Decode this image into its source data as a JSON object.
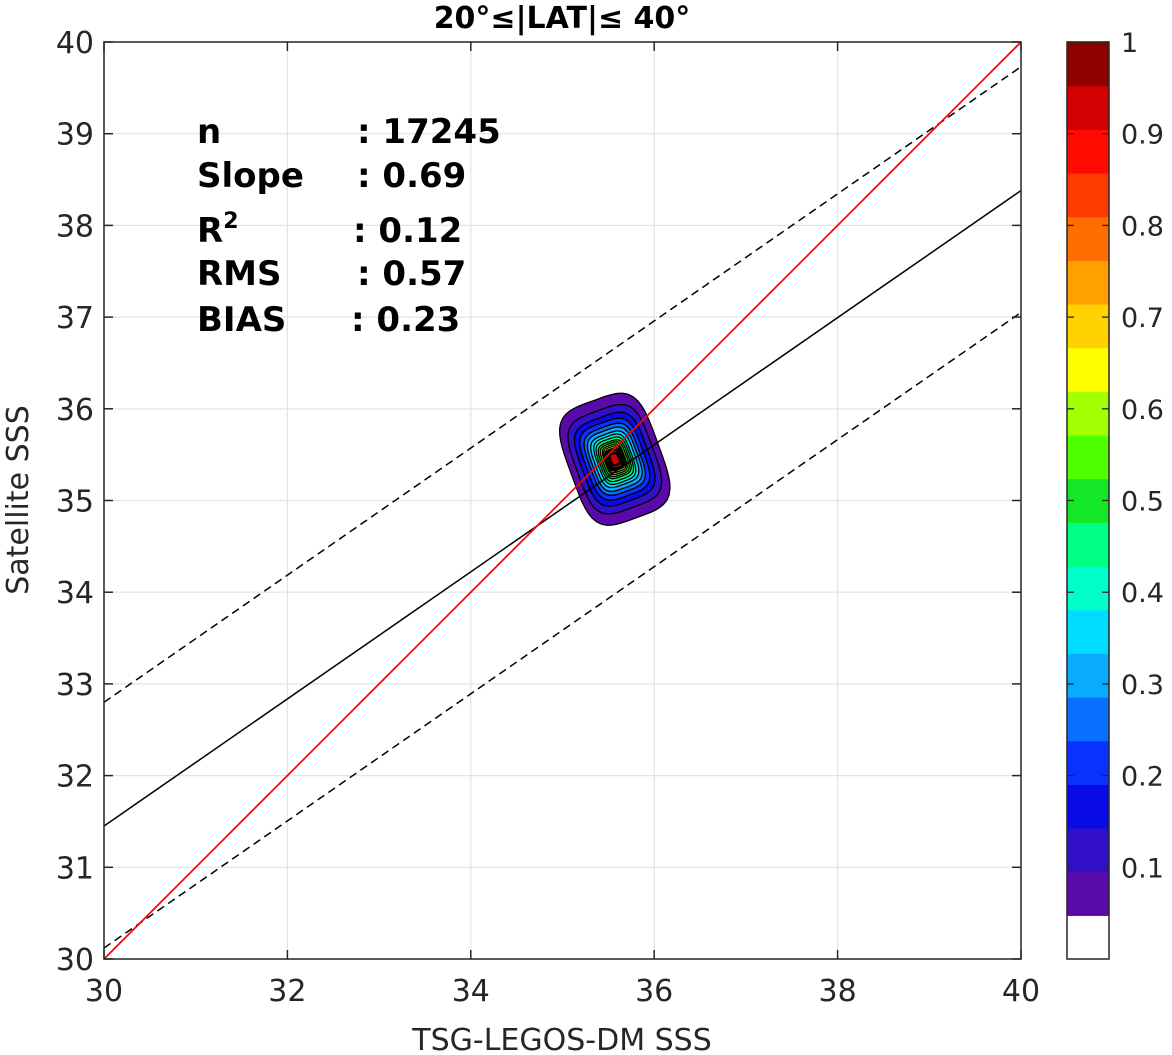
{
  "chart_data": {
    "type": "scatter",
    "title": "20°≤|LAT|≤ 40°",
    "xlabel": "TSG-LEGOS-DM SSS",
    "ylabel": "Satellite SSS",
    "xlim": [
      30,
      40
    ],
    "ylim": [
      30,
      40
    ],
    "xticks": [
      "30",
      "32",
      "34",
      "36",
      "38",
      "40"
    ],
    "yticks": [
      "30",
      "31",
      "32",
      "33",
      "34",
      "35",
      "36",
      "37",
      "38",
      "39",
      "40"
    ],
    "grid": true,
    "stats": [
      {
        "label": "n",
        "value": ": 17245"
      },
      {
        "label": "Slope",
        "value": ": 0.69"
      },
      {
        "label": "R",
        "sup": "2",
        "value": ": 0.12"
      },
      {
        "label": "RMS",
        "value": ": 0.57"
      },
      {
        "label": "BIAS",
        "value": ": 0.23"
      }
    ],
    "lines": {
      "identity": {
        "color": "#ff0000",
        "slope": 1,
        "intercept": 0
      },
      "regression": {
        "color": "#000000",
        "style": "solid",
        "points": [
          [
            30,
            31.45
          ],
          [
            40,
            38.38
          ]
        ]
      },
      "upper_bound": {
        "color": "#000000",
        "style": "dashed",
        "points": [
          [
            30,
            32.8
          ],
          [
            40,
            39.73
          ]
        ]
      },
      "lower_bound": {
        "color": "#000000",
        "style": "dashed",
        "points": [
          [
            30,
            30.12
          ],
          [
            40,
            37.05
          ]
        ]
      }
    },
    "density": {
      "center": [
        35.57,
        35.45
      ],
      "levels": [
        0.05,
        0.1,
        0.15,
        0.2,
        0.25,
        0.3,
        0.35,
        0.4,
        0.45,
        0.5,
        0.55,
        0.6,
        0.65,
        0.7,
        0.75,
        0.8,
        0.85,
        0.9,
        0.95
      ],
      "half_width_x": [
        0.5,
        0.43,
        0.37,
        0.32,
        0.28,
        0.25,
        0.22,
        0.19,
        0.17,
        0.15,
        0.13,
        0.11,
        0.1,
        0.09,
        0.08,
        0.07,
        0.06,
        0.05,
        0.04
      ],
      "half_height_y": [
        0.68,
        0.56,
        0.48,
        0.42,
        0.37,
        0.33,
        0.29,
        0.26,
        0.23,
        0.2,
        0.18,
        0.16,
        0.14,
        0.12,
        0.11,
        0.1,
        0.09,
        0.07,
        0.06
      ]
    },
    "colorbar": {
      "range": [
        0,
        1
      ],
      "tick_values": [
        0.1,
        0.2,
        0.3,
        0.4,
        0.5,
        0.6,
        0.7,
        0.8,
        0.9,
        1.0
      ],
      "tick_labels": [
        "0.1",
        "0.2",
        "0.3",
        "0.4",
        "0.5",
        "0.6",
        "0.7",
        "0.8",
        "0.9",
        "1"
      ],
      "colors": [
        "#ffffff",
        "#5a0aa8",
        "#3210c8",
        "#0a0ae6",
        "#0a32ff",
        "#0a6eff",
        "#0aaaff",
        "#00dcff",
        "#00ffc8",
        "#00ff82",
        "#14e628",
        "#50ff00",
        "#a0ff00",
        "#ffff00",
        "#ffd200",
        "#ffa000",
        "#ff6e00",
        "#ff3c00",
        "#ff0a00",
        "#d20000",
        "#8c0000"
      ]
    }
  }
}
